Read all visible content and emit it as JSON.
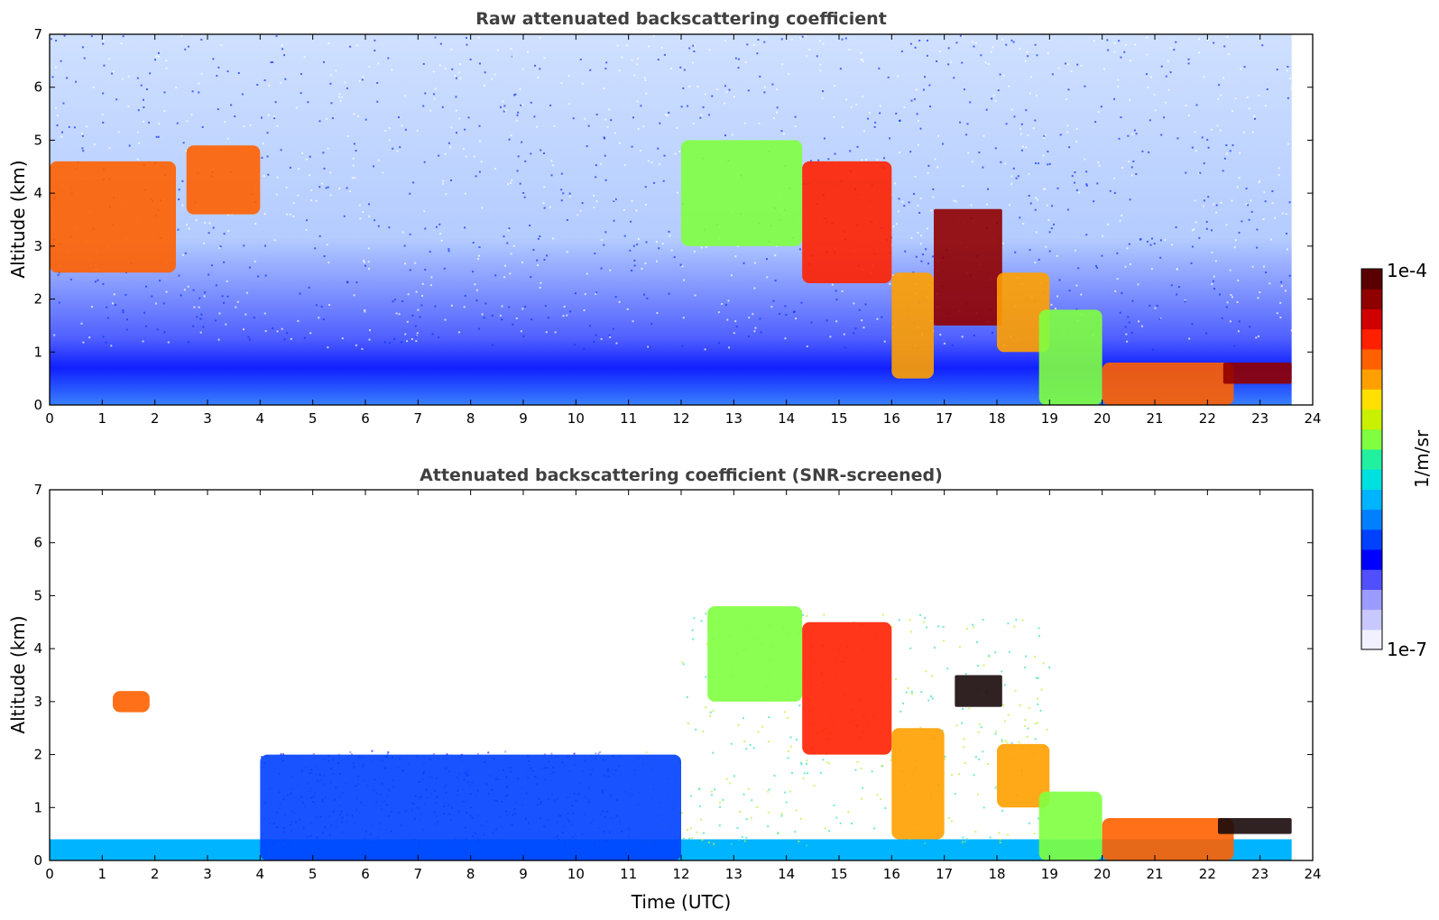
{
  "colors": {
    "scale": [
      "#f0f0ff",
      "#c8c8ff",
      "#9b9bff",
      "#5050ff",
      "#0000ff",
      "#0040ff",
      "#0080ff",
      "#00b4ff",
      "#00e0e0",
      "#20f0a0",
      "#80ff40",
      "#c8f000",
      "#ffe000",
      "#ffa000",
      "#ff6000",
      "#ff2000",
      "#d00000",
      "#900000",
      "#5a0000"
    ]
  },
  "chart_data": [
    {
      "type": "heatmap",
      "title": "Raw attenuated backscattering coefficient",
      "xlabel": "",
      "ylabel": "Altitude (km)",
      "xlim": [
        0,
        24
      ],
      "ylim": [
        0,
        7
      ],
      "xticks": [
        "0",
        "1",
        "2",
        "3",
        "4",
        "5",
        "6",
        "7",
        "8",
        "9",
        "10",
        "11",
        "12",
        "13",
        "14",
        "15",
        "16",
        "17",
        "18",
        "19",
        "20",
        "21",
        "22",
        "23",
        "24"
      ],
      "yticks": [
        "0",
        "1",
        "2",
        "3",
        "4",
        "5",
        "6",
        "7"
      ],
      "data_end_hour": 23.6,
      "noise_background": "dense blue noise throughout, boundary layer 0-0.8 km",
      "features": [
        {
          "x_start": 0.0,
          "x_end": 2.4,
          "alt_bottom": 2.5,
          "alt_top": 4.6,
          "level": "orange-red"
        },
        {
          "x_start": 2.6,
          "x_end": 4.0,
          "alt_bottom": 3.6,
          "alt_top": 4.9,
          "level": "orange-red"
        },
        {
          "x_start": 12.0,
          "x_end": 14.3,
          "alt_bottom": 3.0,
          "alt_top": 5.0,
          "level": "yellow-green"
        },
        {
          "x_start": 14.3,
          "x_end": 16.0,
          "alt_bottom": 2.3,
          "alt_top": 4.6,
          "level": "orange-dark-red"
        },
        {
          "x_start": 16.0,
          "x_end": 16.8,
          "alt_bottom": 0.5,
          "alt_top": 2.5,
          "level": "orange"
        },
        {
          "x_start": 16.8,
          "x_end": 18.1,
          "alt_bottom": 1.5,
          "alt_top": 3.7,
          "level": "dark-red layer"
        },
        {
          "x_start": 18.0,
          "x_end": 19.0,
          "alt_bottom": 1.0,
          "alt_top": 2.5,
          "level": "orange"
        },
        {
          "x_start": 18.8,
          "x_end": 20.0,
          "alt_bottom": 0.0,
          "alt_top": 1.8,
          "level": "yellow-green"
        },
        {
          "x_start": 20.0,
          "x_end": 22.5,
          "alt_bottom": 0.0,
          "alt_top": 0.8,
          "level": "orange-red"
        },
        {
          "x_start": 22.3,
          "x_end": 23.6,
          "alt_bottom": 0.4,
          "alt_top": 0.8,
          "level": "dark-red layer"
        }
      ]
    },
    {
      "type": "heatmap",
      "title": "Attenuated backscattering coefficient (SNR-screened)",
      "xlabel": "Time (UTC)",
      "ylabel": "Altitude (km)",
      "xlim": [
        0,
        24
      ],
      "ylim": [
        0,
        7
      ],
      "xticks": [
        "0",
        "1",
        "2",
        "3",
        "4",
        "5",
        "6",
        "7",
        "8",
        "9",
        "10",
        "11",
        "12",
        "13",
        "14",
        "15",
        "16",
        "17",
        "18",
        "19",
        "20",
        "21",
        "22",
        "23",
        "24"
      ],
      "yticks": [
        "0",
        "1",
        "2",
        "3",
        "4",
        "5",
        "6",
        "7"
      ],
      "data_end_hour": 23.6,
      "noise_background": "screened: white where SNR low, boundary layer 0-0.4 km",
      "features": [
        {
          "x_start": 0.0,
          "x_end": 4.0,
          "alt_bottom": 0.0,
          "alt_top": 0.4,
          "level": "light-blue"
        },
        {
          "x_start": 4.0,
          "x_end": 12.0,
          "alt_bottom": 0.0,
          "alt_top": 2.0,
          "level": "blue"
        },
        {
          "x_start": 1.2,
          "x_end": 1.9,
          "alt_bottom": 2.8,
          "alt_top": 3.2,
          "level": "orange-red"
        },
        {
          "x_start": 12.5,
          "x_end": 14.3,
          "alt_bottom": 3.0,
          "alt_top": 4.8,
          "level": "yellow-green"
        },
        {
          "x_start": 14.3,
          "x_end": 16.0,
          "alt_bottom": 2.0,
          "alt_top": 4.5,
          "level": "orange-dark-red"
        },
        {
          "x_start": 16.0,
          "x_end": 17.0,
          "alt_bottom": 0.4,
          "alt_top": 2.5,
          "level": "orange"
        },
        {
          "x_start": 17.2,
          "x_end": 18.1,
          "alt_bottom": 2.9,
          "alt_top": 3.5,
          "level": "black layer"
        },
        {
          "x_start": 18.0,
          "x_end": 19.0,
          "alt_bottom": 1.0,
          "alt_top": 2.2,
          "level": "orange"
        },
        {
          "x_start": 18.8,
          "x_end": 20.0,
          "alt_bottom": 0.0,
          "alt_top": 1.3,
          "level": "yellow-green"
        },
        {
          "x_start": 20.0,
          "x_end": 22.5,
          "alt_bottom": 0.0,
          "alt_top": 0.8,
          "level": "orange-red"
        },
        {
          "x_start": 22.2,
          "x_end": 23.6,
          "alt_bottom": 0.5,
          "alt_top": 0.8,
          "level": "black layer"
        }
      ]
    }
  ],
  "colorbar": {
    "max_label": "1e-4",
    "min_label": "1e-7",
    "unit_label": "1/m/sr"
  }
}
